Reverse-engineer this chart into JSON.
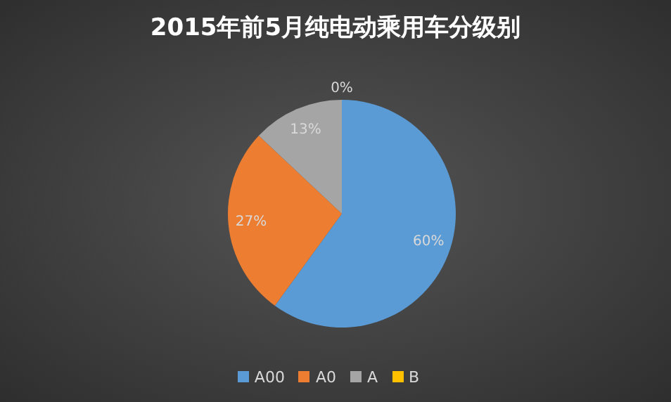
{
  "chart_data": {
    "type": "pie",
    "title": "2015年前5月纯电动乘用车分级别",
    "categories": [
      "A00",
      "A0",
      "A",
      "B"
    ],
    "values": [
      60,
      27,
      13,
      0
    ],
    "value_labels": [
      "60%",
      "27%",
      "13%",
      "0%"
    ],
    "colors": [
      "#5b9bd5",
      "#ed7d31",
      "#a5a5a5",
      "#ffc000"
    ],
    "legend": "bottom"
  }
}
